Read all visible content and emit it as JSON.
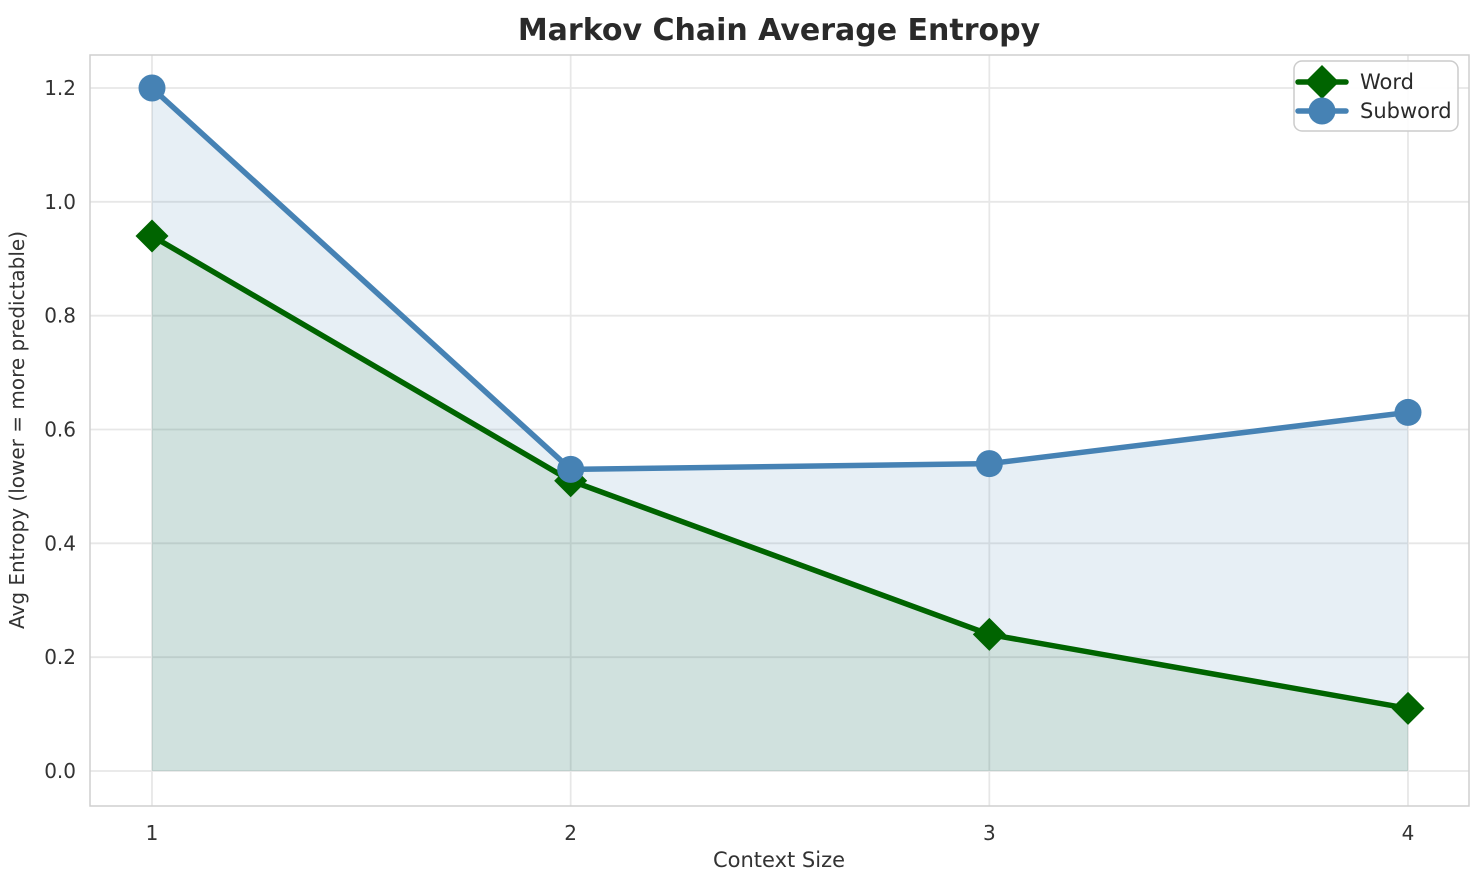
{
  "chart_data": {
    "type": "line",
    "title": "Markov Chain Average Entropy",
    "xlabel": "Context Size",
    "ylabel": "Avg Entropy (lower = more predictable)",
    "x": [
      1,
      2,
      3,
      4
    ],
    "xticks": [
      "1",
      "2",
      "3",
      "4"
    ],
    "yticks": [
      "0.0",
      "0.2",
      "0.4",
      "0.6",
      "0.8",
      "1.0",
      "1.2"
    ],
    "ylim": [
      0.0,
      1.2
    ],
    "grid": true,
    "legend_position": "upper right",
    "series": [
      {
        "name": "Word",
        "marker": "diamond",
        "color": "#006400",
        "fill_color": "rgba(0,100,0,0.10)",
        "values": [
          0.94,
          0.51,
          0.24,
          0.11
        ]
      },
      {
        "name": "Subword",
        "marker": "circle",
        "color": "#4682b4",
        "fill_color": "rgba(70,130,180,0.13)",
        "values": [
          1.2,
          0.53,
          0.54,
          0.63
        ]
      }
    ],
    "colors": {
      "title_text": "#2a2a2a",
      "tick_text": "#333333",
      "axis_label_text": "#333333",
      "gridline": "#e7e7e7",
      "plot_border": "#cfcfcf",
      "legend_border": "#cccccc",
      "legend_background": "#ffffff",
      "figure_background": "#ffffff"
    }
  }
}
